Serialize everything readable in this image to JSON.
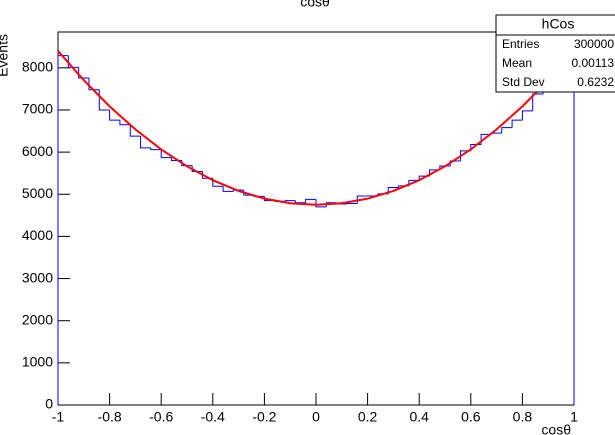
{
  "chart_data": {
    "type": "histogram",
    "title": "cosθ",
    "x_label": "cosθ",
    "y_label": "Events",
    "bins": [
      -1,
      -0.96,
      -0.92,
      -0.88,
      -0.84,
      -0.8,
      -0.76,
      -0.72,
      -0.68,
      -0.64,
      -0.6,
      -0.56,
      -0.52,
      -0.48,
      -0.44,
      -0.4,
      -0.36,
      -0.32,
      -0.28,
      -0.24,
      -0.2,
      -0.16,
      -0.12,
      -0.08,
      -0.04,
      0,
      0.04,
      0.08,
      0.12,
      0.16,
      0.2,
      0.24,
      0.28,
      0.32,
      0.36,
      0.4,
      0.44,
      0.48,
      0.52,
      0.56,
      0.6,
      0.64,
      0.68,
      0.72,
      0.76,
      0.8,
      0.84,
      0.88,
      0.92,
      0.96,
      1
    ],
    "values": [
      8290,
      8010,
      7760,
      7480,
      7000,
      6760,
      6650,
      6380,
      6100,
      6060,
      5870,
      5800,
      5680,
      5540,
      5380,
      5190,
      5070,
      5100,
      4980,
      4950,
      4850,
      4830,
      4850,
      4800,
      4880,
      4700,
      4800,
      4770,
      4780,
      4960,
      4960,
      5010,
      5160,
      5200,
      5330,
      5430,
      5580,
      5670,
      5790,
      6030,
      6180,
      6420,
      6450,
      6580,
      6760,
      6980,
      7380,
      7500,
      7760,
      8010
    ],
    "color": "#0000ff",
    "fit": {
      "color": "#ff0000",
      "x": [
        -1,
        -0.9,
        -0.8,
        -0.7,
        -0.6,
        -0.5,
        -0.4,
        -0.3,
        -0.2,
        -0.1,
        0,
        0.1,
        0.2,
        0.3,
        0.4,
        0.5,
        0.6,
        0.7,
        0.8,
        0.9,
        1
      ],
      "values": [
        8400,
        7707,
        7086,
        6539,
        6064,
        5663,
        5334,
        5079,
        4896,
        4787,
        4750,
        4787,
        4896,
        5079,
        5334,
        5663,
        6064,
        6539,
        7086,
        7707,
        8400
      ]
    },
    "xlim": [
      -1,
      1
    ],
    "xticks": [
      -1,
      -0.8,
      -0.6,
      -0.4,
      -0.2,
      0,
      0.2,
      0.4,
      0.6,
      0.8,
      1
    ],
    "ylim": [
      0,
      8850
    ],
    "yticks": [
      0,
      1000,
      2000,
      3000,
      4000,
      5000,
      6000,
      7000,
      8000
    ],
    "stats": {
      "name": "hCos",
      "rows": [
        [
          "Entries",
          "300000"
        ],
        [
          "Mean",
          "0.00113"
        ],
        [
          "Std Dev",
          "0.6232"
        ]
      ]
    }
  }
}
